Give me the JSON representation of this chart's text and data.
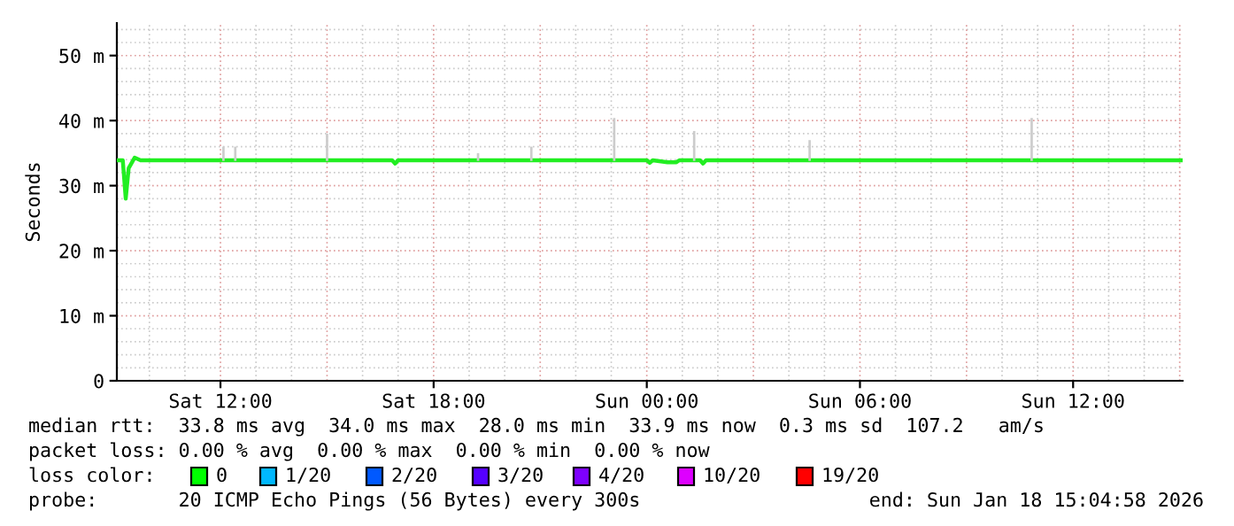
{
  "chart_data": {
    "type": "line",
    "ylabel": "Seconds",
    "xlim": [
      "2026-01-17T09:05",
      "2026-01-18T15:05"
    ],
    "xticks": [
      {
        "value": "2026-01-17T12:00",
        "label": "Sat 12:00"
      },
      {
        "value": "2026-01-17T18:00",
        "label": "Sat 18:00"
      },
      {
        "value": "2026-01-18T00:00",
        "label": "Sun 00:00"
      },
      {
        "value": "2026-01-18T06:00",
        "label": "Sun 06:00"
      },
      {
        "value": "2026-01-18T12:00",
        "label": "Sun 12:00"
      }
    ],
    "ylim": [
      0,
      55
    ],
    "yticks": [
      0,
      {
        "value": 10,
        "label": "10 m"
      },
      {
        "value": 20,
        "label": "20 m"
      },
      {
        "value": 30,
        "label": "30 m"
      },
      {
        "value": 40,
        "label": "40 m"
      },
      {
        "value": 50,
        "label": "50 m"
      }
    ],
    "grid": true,
    "series": [
      {
        "type": "bar",
        "color": "#cccccc",
        "x": [
          "2026-01-17T12:05",
          "2026-01-17T12:25",
          "2026-01-17T15:00",
          "2026-01-17T19:15",
          "2026-01-17T20:45",
          "2026-01-17T23:05",
          "2026-01-18T01:20",
          "2026-01-18T04:35",
          "2026-01-18T10:50"
        ],
        "base": [
          33.8,
          33.8,
          33.8,
          33.8,
          33.8,
          33.8,
          33.8,
          33.8,
          33.8
        ],
        "values": [
          2.2,
          2.2,
          4.2,
          1.2,
          2.2,
          6.6,
          4.6,
          3.2,
          6.6
        ]
      },
      {
        "color": "#22ee22",
        "x": [
          "2026-01-17T09:05",
          "2026-01-17T09:15",
          "2026-01-17T09:20",
          "2026-01-17T09:25",
          "2026-01-17T09:35",
          "2026-01-17T09:45",
          "2026-01-17T16:50",
          "2026-01-17T16:55",
          "2026-01-17T17:00",
          "2026-01-18T00:00",
          "2026-01-18T00:05",
          "2026-01-18T00:10",
          "2026-01-18T00:35",
          "2026-01-18T00:50",
          "2026-01-18T00:55",
          "2026-01-18T01:30",
          "2026-01-18T01:35",
          "2026-01-18T01:40",
          "2026-01-18T15:05"
        ],
        "values": [
          33.9,
          33.9,
          28.0,
          32.7,
          34.3,
          33.9,
          33.9,
          33.4,
          33.9,
          33.9,
          33.5,
          33.9,
          33.6,
          33.6,
          33.9,
          33.9,
          33.4,
          33.9,
          33.9
        ]
      }
    ],
    "annotations": [
      "median rtt:  33.8 ms avg  34.0 ms max  28.0 ms min  33.9 ms now  0.3 ms sd  107.2   am/s",
      "packet loss: 0.00 % avg  0.00 % max  0.00 % min  0.00 % now",
      "loss color:",
      "0",
      "1/20",
      "2/20",
      "3/20",
      "4/20",
      "10/20",
      "19/20",
      "probe:       20 ICMP Echo Pings (56 Bytes) every 300s",
      "end: Sun Jan 18 15:04:58 2026"
    ]
  }
}
